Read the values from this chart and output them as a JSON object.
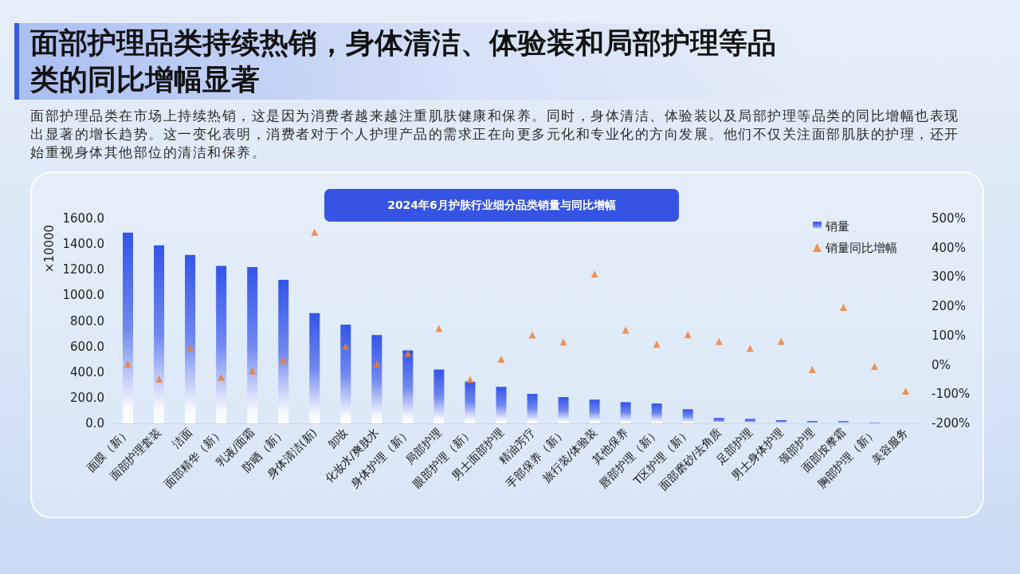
{
  "chart_data": {
    "type": "bar",
    "title": "面部护理品类持续热销，身体清洁、体验装和局部护理等品类的同比增幅显著",
    "subtitle": "2024年6月护肤行业细分品类销量与同比增幅",
    "annotations": [
      "面部护理品类在市场上持续热销，这是因为消费者越来越注重肌肤健康和保养。同时，身体清洁、体验装以及局部护理等品类的同比增幅也表现出显著的增长趋势。这一变化表明，消费者对于个人护理产品的需求正在向更多元化和专业化的方向发展。他们不仅关注面部肌肤的护理，还开始重视身体其他部位的清洁和保养。"
    ],
    "ylabel": "×10000",
    "categories": [
      "面膜（新）",
      "面部护理套装",
      "洁面",
      "面部精华（新）",
      "乳液/面霜",
      "防晒（新）",
      "身体清洁(新)",
      "卸妆",
      "化妆水/爽肤水",
      "身体护理（新）",
      "局部护理",
      "眼部护理（新）",
      "男士面部护理",
      "精油芳疗",
      "手部保养（新）",
      "旅行装/体验装",
      "其他保养",
      "唇部护理（新）",
      "T区护理（新）",
      "面部磨砂/去角质",
      "足部护理",
      "男士身体护理",
      "颈部护理",
      "面部按摩霜",
      "胸部护理（新）",
      "美容服务"
    ],
    "series": [
      {
        "name": "销量",
        "color": "#3355e8",
        "values": [
          1490,
          1390,
          1315,
          1230,
          1220,
          1120,
          860,
          770,
          690,
          570,
          420,
          325,
          285,
          230,
          205,
          185,
          165,
          155,
          110,
          42,
          35,
          25,
          18,
          17,
          4,
          0
        ]
      },
      {
        "name": "销量同比增幅",
        "type": "scatter",
        "axis": "y2",
        "color": "#ed7d31",
        "values": [
          3,
          -49,
          57,
          -43,
          -20,
          15,
          453,
          63,
          3,
          39,
          124,
          -50,
          19,
          102,
          78,
          310,
          119,
          70,
          103,
          80,
          56,
          80,
          -16,
          196,
          -5,
          -90
        ]
      }
    ],
    "ylim": [
      0,
      1600
    ],
    "yticks": [
      {
        "value": 0,
        "label": "0.0"
      },
      {
        "value": 200,
        "label": "200.0"
      },
      {
        "value": 400,
        "label": "400.0"
      },
      {
        "value": 600,
        "label": "600.0"
      },
      {
        "value": 800,
        "label": "800.0"
      },
      {
        "value": 1000,
        "label": "1000.0"
      },
      {
        "value": 1200,
        "label": "1200.0"
      },
      {
        "value": 1400,
        "label": "1400.0"
      },
      {
        "value": 1600,
        "label": "1600.0"
      }
    ],
    "y2lim": [
      -200,
      500
    ],
    "y2ticks": [
      {
        "value": -200,
        "label": "-200%"
      },
      {
        "value": -100,
        "label": "-100%"
      },
      {
        "value": 0,
        "label": "0%"
      },
      {
        "value": 100,
        "label": "100%"
      },
      {
        "value": 200,
        "label": "200%"
      },
      {
        "value": 300,
        "label": "300%"
      },
      {
        "value": 400,
        "label": "400%"
      },
      {
        "value": 500,
        "label": "500%"
      }
    ],
    "legend": "top right",
    "marker": "triangle"
  }
}
